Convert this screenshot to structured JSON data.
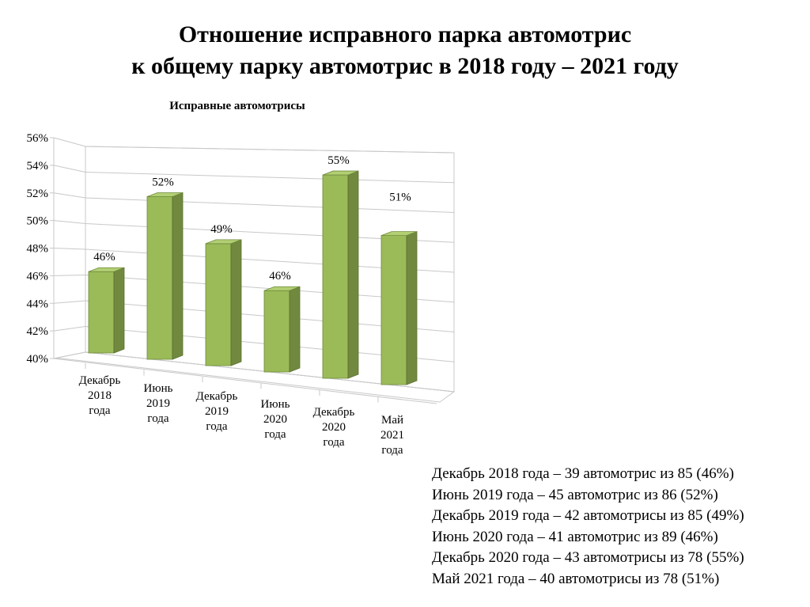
{
  "page": {
    "title_line1": "Отношение исправного парка автомотрис",
    "title_line2": "к общему парку автомотрис в 2018 году – 2021 году"
  },
  "chart_data": {
    "type": "bar",
    "title": "Исправные автомотрисы",
    "categories": [
      [
        "Декабрь",
        "2018",
        "года"
      ],
      [
        "Июнь",
        "2019",
        "года"
      ],
      [
        "Декабрь",
        "2019",
        "года"
      ],
      [
        "Июнь",
        "2020",
        "года"
      ],
      [
        "Декабрь",
        "2020",
        "года"
      ],
      [
        "Май",
        "2021",
        "года"
      ]
    ],
    "values": [
      46,
      52,
      49,
      46,
      55,
      51
    ],
    "data_labels": [
      "46%",
      "52%",
      "49%",
      "46%",
      "55%",
      "51%"
    ],
    "ylim": [
      40,
      56
    ],
    "yticks": [
      "40%",
      "42%",
      "44%",
      "46%",
      "48%",
      "50%",
      "52%",
      "54%",
      "56%"
    ],
    "grid": true,
    "style": "3d-bar",
    "bar_color": "#9bbb59",
    "bar_side_color": "#71893f",
    "bar_top_color": "#b3cf74"
  },
  "notes": [
    "Декабрь 2018 года – 39 автомотрис из 85 (46%)",
    "Июнь 2019 года – 45 автомотрис из 86 (52%)",
    "Декабрь 2019 года – 42 автомотрисы из 85 (49%)",
    "Июнь 2020 года – 41 автомотрис из 89 (46%)",
    "Декабрь 2020 года – 43 автомотрисы из 78 (55%)",
    "Май 2021 года – 40 автомотрисы из 78 (51%)"
  ]
}
